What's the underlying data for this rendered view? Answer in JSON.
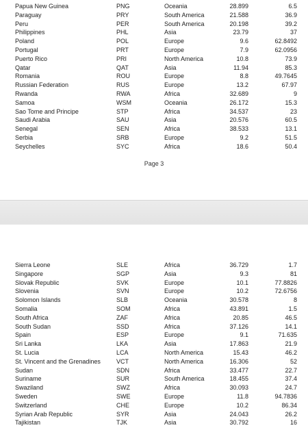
{
  "page_label": "Page 3",
  "top_rows": [
    {
      "country": "Papua New Guinea",
      "code": "PNG",
      "region": "Oceania",
      "v1": "28.899",
      "v2": "6.5"
    },
    {
      "country": "Paraguay",
      "code": "PRY",
      "region": "South America",
      "v1": "21.588",
      "v2": "36.9"
    },
    {
      "country": "Peru",
      "code": "PER",
      "region": "South America",
      "v1": "20.198",
      "v2": "39.2"
    },
    {
      "country": "Philippines",
      "code": "PHL",
      "region": "Asia",
      "v1": "23.79",
      "v2": "37"
    },
    {
      "country": "Poland",
      "code": "POL",
      "region": "Europe",
      "v1": "9.6",
      "v2": "62.8492"
    },
    {
      "country": "Portugal",
      "code": "PRT",
      "region": "Europe",
      "v1": "7.9",
      "v2": "62.0956"
    },
    {
      "country": "Puerto Rico",
      "code": "PRI",
      "region": "North America",
      "v1": "10.8",
      "v2": "73.9"
    },
    {
      "country": "Qatar",
      "code": "QAT",
      "region": "Asia",
      "v1": "11.94",
      "v2": "85.3"
    },
    {
      "country": "Romania",
      "code": "ROU",
      "region": "Europe",
      "v1": "8.8",
      "v2": "49.7645"
    },
    {
      "country": "Russian Federation",
      "code": "RUS",
      "region": "Europe",
      "v1": "13.2",
      "v2": "67.97"
    },
    {
      "country": "Rwanda",
      "code": "RWA",
      "region": "Africa",
      "v1": "32.689",
      "v2": "9"
    },
    {
      "country": "Samoa",
      "code": "WSM",
      "region": "Oceania",
      "v1": "26.172",
      "v2": "15.3"
    },
    {
      "country": "Sao Tome and Principe",
      "code": "STP",
      "region": "Africa",
      "v1": "34.537",
      "v2": "23"
    },
    {
      "country": "Saudi Arabia",
      "code": "SAU",
      "region": "Asia",
      "v1": "20.576",
      "v2": "60.5"
    },
    {
      "country": "Senegal",
      "code": "SEN",
      "region": "Africa",
      "v1": "38.533",
      "v2": "13.1"
    },
    {
      "country": "Serbia",
      "code": "SRB",
      "region": "Europe",
      "v1": "9.2",
      "v2": "51.5"
    },
    {
      "country": "Seychelles",
      "code": "SYC",
      "region": "Africa",
      "v1": "18.6",
      "v2": "50.4"
    }
  ],
  "bottom_rows": [
    {
      "country": "Sierra Leone",
      "code": "SLE",
      "region": "Africa",
      "v1": "36.729",
      "v2": "1.7"
    },
    {
      "country": "Singapore",
      "code": "SGP",
      "region": "Asia",
      "v1": "9.3",
      "v2": "81"
    },
    {
      "country": "Slovak Republic",
      "code": "SVK",
      "region": "Europe",
      "v1": "10.1",
      "v2": "77.8826"
    },
    {
      "country": "Slovenia",
      "code": "SVN",
      "region": "Europe",
      "v1": "10.2",
      "v2": "72.6756"
    },
    {
      "country": "Solomon Islands",
      "code": "SLB",
      "region": "Oceania",
      "v1": "30.578",
      "v2": "8"
    },
    {
      "country": "Somalia",
      "code": "SOM",
      "region": "Africa",
      "v1": "43.891",
      "v2": "1.5"
    },
    {
      "country": "South Africa",
      "code": "ZAF",
      "region": "Africa",
      "v1": "20.85",
      "v2": "46.5"
    },
    {
      "country": "South Sudan",
      "code": "SSD",
      "region": "Africa",
      "v1": "37.126",
      "v2": "14.1"
    },
    {
      "country": "Spain",
      "code": "ESP",
      "region": "Europe",
      "v1": "9.1",
      "v2": "71.635"
    },
    {
      "country": "Sri Lanka",
      "code": "LKA",
      "region": "Asia",
      "v1": "17.863",
      "v2": "21.9"
    },
    {
      "country": "St. Lucia",
      "code": "LCA",
      "region": "North America",
      "v1": "15.43",
      "v2": "46.2"
    },
    {
      "country": "St. Vincent and the Grenadines",
      "code": "VCT",
      "region": "North America",
      "v1": "16.306",
      "v2": "52"
    },
    {
      "country": "Sudan",
      "code": "SDN",
      "region": "Africa",
      "v1": "33.477",
      "v2": "22.7"
    },
    {
      "country": "Suriname",
      "code": "SUR",
      "region": "South America",
      "v1": "18.455",
      "v2": "37.4"
    },
    {
      "country": "Swaziland",
      "code": "SWZ",
      "region": "Africa",
      "v1": "30.093",
      "v2": "24.7"
    },
    {
      "country": "Sweden",
      "code": "SWE",
      "region": "Europe",
      "v1": "11.8",
      "v2": "94.7836"
    },
    {
      "country": "Switzerland",
      "code": "CHE",
      "region": "Europe",
      "v1": "10.2",
      "v2": "86.34"
    },
    {
      "country": "Syrian Arab Republic",
      "code": "SYR",
      "region": "Asia",
      "v1": "24.043",
      "v2": "26.2"
    },
    {
      "country": "Tajikistan",
      "code": "TJK",
      "region": "Asia",
      "v1": "30.792",
      "v2": "16"
    }
  ]
}
